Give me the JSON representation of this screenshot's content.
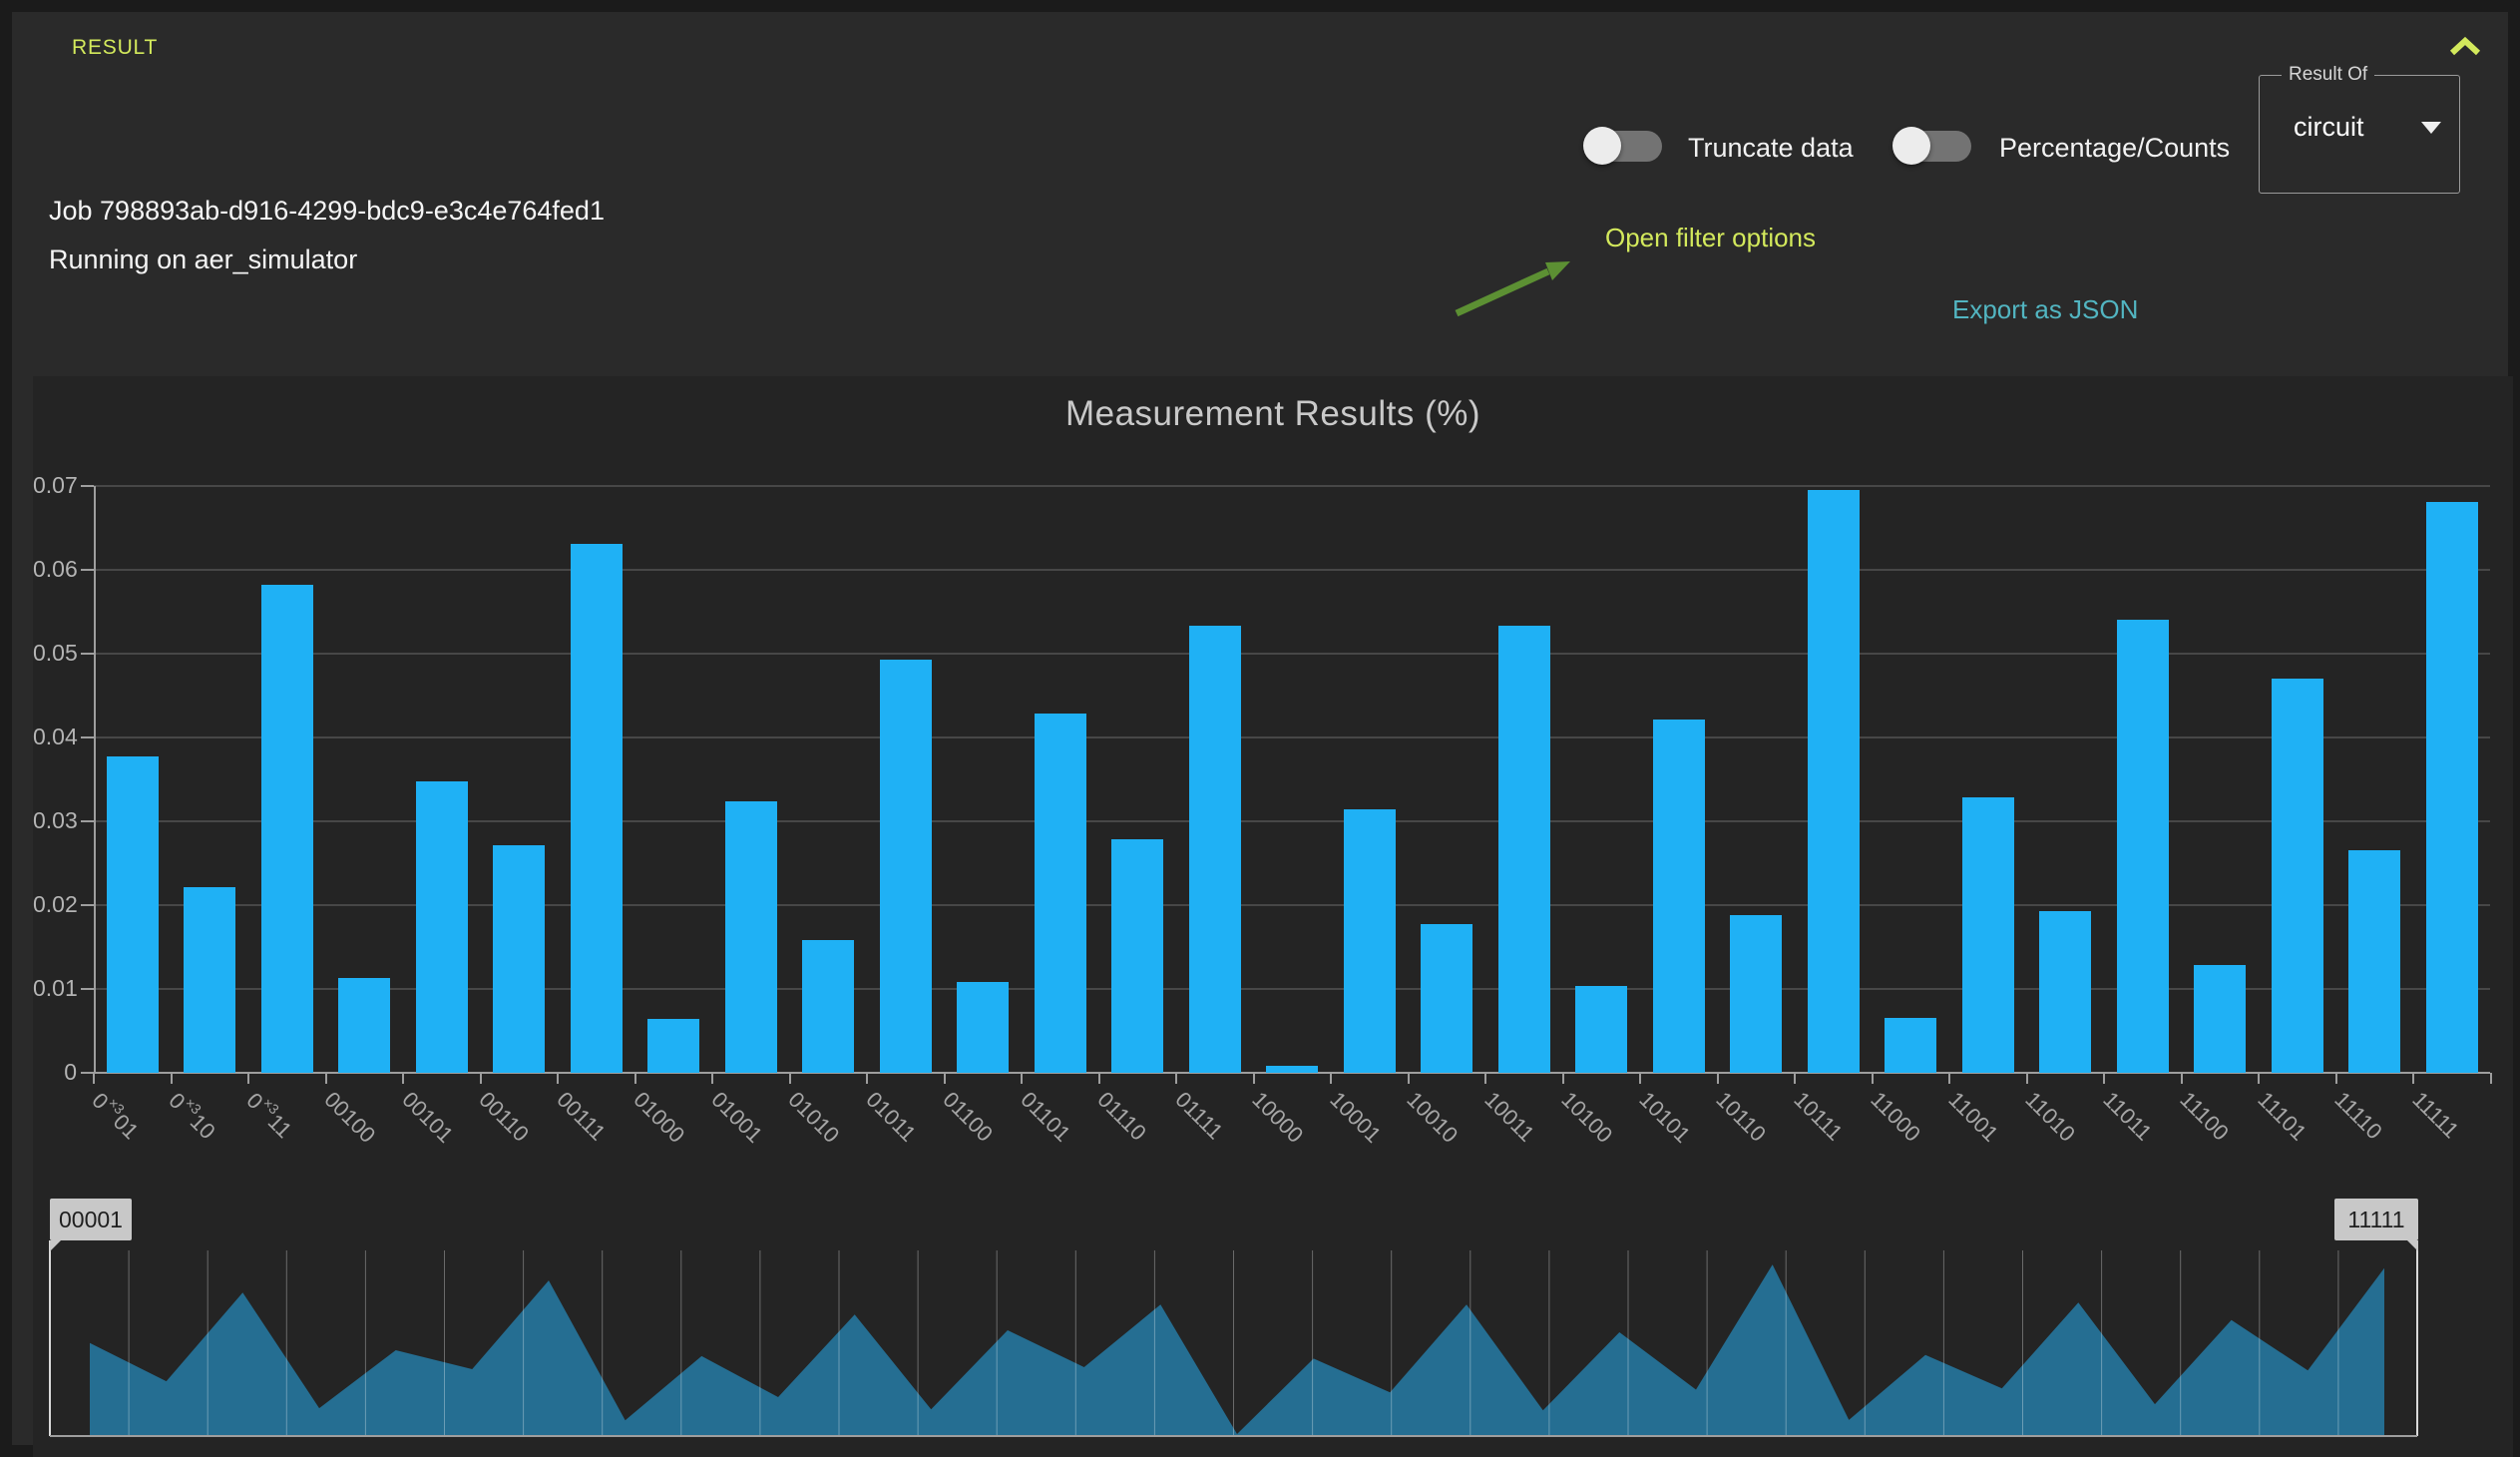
{
  "panel": {
    "title": "RESULT"
  },
  "controls": {
    "truncate_toggle": {
      "label": "Truncate data",
      "state": "off"
    },
    "percentage_toggle": {
      "label": "Percentage/Counts",
      "state": "off"
    },
    "result_of": {
      "legend": "Result Of",
      "selected": "circuit"
    }
  },
  "job": {
    "line1": "Job 798893ab-d916-4299-bdc9-e3c4e764fed1",
    "line2": "Running on aer_simulator"
  },
  "links": {
    "filter": "Open filter options",
    "export": "Export as JSON"
  },
  "chart_data": {
    "type": "bar",
    "title": "Measurement Results (%)",
    "xlabel": "",
    "ylabel": "",
    "ylim": [
      0,
      0.07
    ],
    "ytick_step": 0.01,
    "ytick_labels": [
      "0",
      "0.01",
      "0.02",
      "0.03",
      "0.04",
      "0.05",
      "0.06",
      "0.07"
    ],
    "grid": "horizontal",
    "legend": "none",
    "x_label_rotation": 45,
    "categories": [
      "00001",
      "00010",
      "00011",
      "00100",
      "00101",
      "00110",
      "00111",
      "01000",
      "01001",
      "01010",
      "01011",
      "01100",
      "01101",
      "01110",
      "01111",
      "10000",
      "10001",
      "10010",
      "10011",
      "10100",
      "10101",
      "10110",
      "10111",
      "11000",
      "11001",
      "11010",
      "11011",
      "11100",
      "11101",
      "11110",
      "11111"
    ],
    "values": [
      0.0377,
      0.0222,
      0.0582,
      0.0113,
      0.0348,
      0.0271,
      0.0631,
      0.0064,
      0.0324,
      0.0158,
      0.0493,
      0.0108,
      0.0429,
      0.0279,
      0.0533,
      0.0008,
      0.0314,
      0.0177,
      0.0533,
      0.0104,
      0.0421,
      0.0188,
      0.0695,
      0.0065,
      0.0329,
      0.0193,
      0.0541,
      0.0129,
      0.047,
      0.0266,
      0.0681
    ],
    "truncated_label_display": {
      "00001": {
        "pre": "0",
        "sup": "×3",
        "post": "01"
      },
      "00010": {
        "pre": "0",
        "sup": "×3",
        "post": "10"
      },
      "00011": {
        "pre": "0",
        "sup": "×3",
        "post": "11"
      }
    }
  },
  "navigator": {
    "type": "area",
    "series": "same values as chart_data.values",
    "min_label": "00001",
    "max_label": "11111"
  },
  "colors": {
    "accent_yellow": "#d3e95c",
    "link_teal": "#52b5c1",
    "bar_blue": "#1fb1f5",
    "navigator_teal": "#256e92",
    "arrow_green": "#5c9033",
    "badge_gray": "#c8c8c8"
  }
}
